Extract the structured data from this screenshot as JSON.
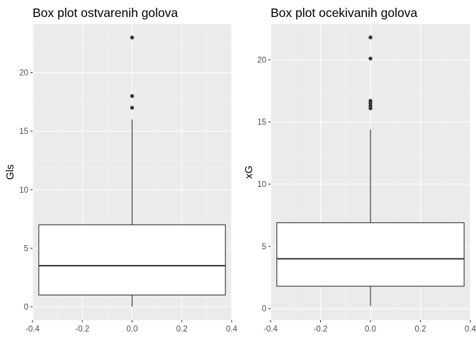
{
  "chart_data": [
    {
      "type": "boxplot",
      "title": "Box plot ostvarenih golova",
      "xlabel": "",
      "ylabel": "Gls",
      "xlim": [
        -0.4,
        0.4
      ],
      "ylim": [
        -1.15,
        24.15
      ],
      "x_ticks": [
        -0.4,
        -0.2,
        0.0,
        0.2,
        0.4
      ],
      "x_tick_labels": [
        "-0.4",
        "-0.2",
        "0.0",
        "0.2",
        "0.4"
      ],
      "y_ticks": [
        0,
        5,
        10,
        15,
        20
      ],
      "y_tick_labels": [
        "0",
        "5",
        "10",
        "15",
        "20"
      ],
      "box": {
        "x": 0,
        "width": 0.75,
        "lower_whisker": 0,
        "q1": 1,
        "median": 3.5,
        "q3": 7,
        "upper_whisker": 16
      },
      "outliers": [
        17,
        18,
        23
      ],
      "grid": true
    },
    {
      "type": "boxplot",
      "title": "Box plot ocekivanih golova",
      "xlabel": "",
      "ylabel": "xG",
      "xlim": [
        -0.4,
        0.4
      ],
      "ylim": [
        -0.93,
        22.87
      ],
      "x_ticks": [
        -0.4,
        -0.2,
        0.0,
        0.2,
        0.4
      ],
      "x_tick_labels": [
        "-0.4",
        "-0.2",
        "0.0",
        "0.2",
        "0.4"
      ],
      "y_ticks": [
        0,
        5,
        10,
        15,
        20
      ],
      "y_tick_labels": [
        "0",
        "5",
        "10",
        "15",
        "20"
      ],
      "box": {
        "x": 0,
        "width": 0.75,
        "lower_whisker": 0.2,
        "q1": 1.8,
        "median": 4.0,
        "q3": 6.9,
        "upper_whisker": 14.4
      },
      "outliers": [
        16.1,
        16.3,
        16.5,
        16.7,
        20.1,
        21.8
      ],
      "grid": true
    }
  ]
}
